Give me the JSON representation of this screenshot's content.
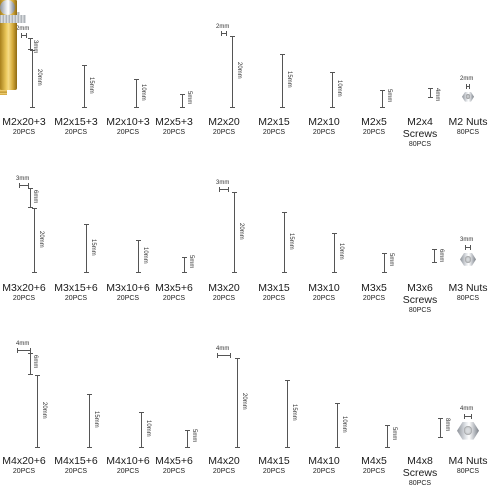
{
  "items": [
    {
      "name": "M2x20+3",
      "qty": "20PCS",
      "dims": [
        "2mm",
        "3mm",
        "20mm"
      ]
    },
    {
      "name": "M2x15+3",
      "qty": "20PCS",
      "dims": [
        "15mm"
      ]
    },
    {
      "name": "M2x10+3",
      "qty": "20PCS",
      "dims": [
        "10mm"
      ]
    },
    {
      "name": "M2x5+3",
      "qty": "20PCS",
      "dims": [
        "5mm"
      ]
    },
    {
      "name": "M2x20",
      "qty": "20PCS",
      "dims": [
        "2mm",
        "20mm"
      ]
    },
    {
      "name": "M2x15",
      "qty": "20PCS",
      "dims": [
        "15mm"
      ]
    },
    {
      "name": "M2x10",
      "qty": "20PCS",
      "dims": [
        "10mm"
      ]
    },
    {
      "name": "M2x5",
      "qty": "20PCS",
      "dims": [
        "5mm"
      ]
    },
    {
      "name": "M2x4",
      "name2": "Screws",
      "qty": "80PCS",
      "dims": [
        "4mm"
      ]
    },
    {
      "name": "M2 Nuts",
      "qty": "80PCS",
      "dims": [
        "2mm"
      ]
    },
    {
      "name": "M3x20+6",
      "qty": "20PCS",
      "dims": [
        "3mm",
        "6mm",
        "20mm"
      ]
    },
    {
      "name": "M3x15+6",
      "qty": "20PCS",
      "dims": [
        "15mm"
      ]
    },
    {
      "name": "M3x10+6",
      "qty": "20PCS",
      "dims": [
        "10mm"
      ]
    },
    {
      "name": "M3x5+6",
      "qty": "20PCS",
      "dims": [
        "5mm"
      ]
    },
    {
      "name": "M3x20",
      "qty": "20PCS",
      "dims": [
        "3mm",
        "20mm"
      ]
    },
    {
      "name": "M3x15",
      "qty": "20PCS",
      "dims": [
        "15mm"
      ]
    },
    {
      "name": "M3x10",
      "qty": "20PCS",
      "dims": [
        "10mm"
      ]
    },
    {
      "name": "M3x5",
      "qty": "20PCS",
      "dims": [
        "5mm"
      ]
    },
    {
      "name": "M3x6",
      "name2": "Screws",
      "qty": "80PCS",
      "dims": [
        "6mm"
      ]
    },
    {
      "name": "M3 Nuts",
      "qty": "80PCS",
      "dims": [
        "3mm"
      ]
    },
    {
      "name": "M4x20+6",
      "qty": "20PCS",
      "dims": [
        "4mm",
        "6mm",
        "20mm"
      ]
    },
    {
      "name": "M4x15+6",
      "qty": "20PCS",
      "dims": [
        "15mm"
      ]
    },
    {
      "name": "M4x10+6",
      "qty": "20PCS",
      "dims": [
        "10mm"
      ]
    },
    {
      "name": "M4x5+6",
      "qty": "20PCS",
      "dims": [
        "5mm"
      ]
    },
    {
      "name": "M4x20",
      "qty": "20PCS",
      "dims": [
        "4mm",
        "20mm"
      ]
    },
    {
      "name": "M4x15",
      "qty": "20PCS",
      "dims": [
        "15mm"
      ]
    },
    {
      "name": "M4x10",
      "qty": "20PCS",
      "dims": [
        "10mm"
      ]
    },
    {
      "name": "M4x5",
      "qty": "20PCS",
      "dims": [
        "5mm"
      ]
    },
    {
      "name": "M4x8",
      "name2": "Screws",
      "qty": "80PCS",
      "dims": [
        "8mm"
      ]
    },
    {
      "name": "M4 Nuts",
      "qty": "80PCS",
      "dims": [
        "4mm"
      ]
    }
  ]
}
